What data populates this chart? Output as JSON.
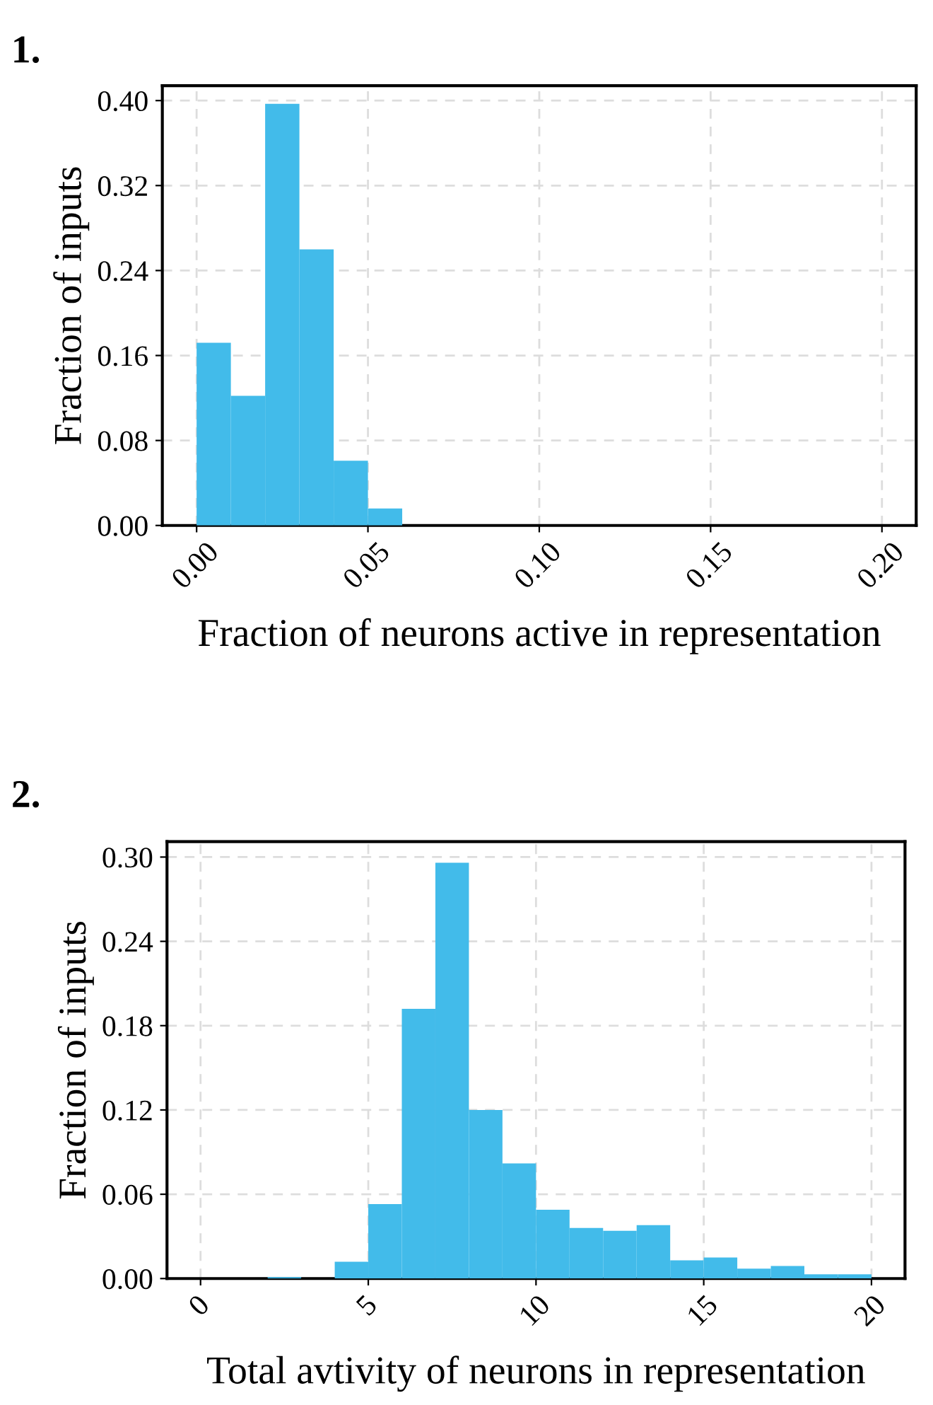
{
  "chart_data": [
    {
      "type": "histogram",
      "title": "1.",
      "xlabel": "Fraction of neurons active in representation",
      "ylabel": "Fraction of inputs",
      "color": "#42bbea",
      "bins": [
        0.0,
        0.01,
        0.02,
        0.03,
        0.04,
        0.05,
        0.06
      ],
      "values": [
        0.172,
        0.122,
        0.397,
        0.26,
        0.061,
        0.016
      ],
      "xlim": [
        -0.01,
        0.21
      ],
      "xticks": [
        {
          "value": 0,
          "label": "0.00"
        },
        0.05,
        {
          "value": 0.1,
          "label": "0.10"
        },
        0.15,
        {
          "value": 0.2,
          "label": "0.20"
        }
      ],
      "ylim": [
        0,
        0.414
      ],
      "yticks": [
        {
          "value": 0,
          "label": "0.00"
        },
        0.08,
        0.16,
        0.24,
        0.32,
        {
          "value": 0.4,
          "label": "0.40"
        }
      ],
      "grid": true
    },
    {
      "type": "histogram",
      "title": "2.",
      "xlabel": "Total avtivity of neurons in representation",
      "ylabel": "Fraction of inputs",
      "color": "#42bbea",
      "bins": [
        0,
        1,
        2,
        3,
        4,
        5,
        6,
        7,
        8,
        9,
        10,
        11,
        12,
        13,
        14,
        15,
        16,
        17,
        18,
        19,
        20
      ],
      "values": [
        0,
        0,
        0.001,
        0,
        0.012,
        0.053,
        0.192,
        0.296,
        0.12,
        0.082,
        0.049,
        0.036,
        0.034,
        0.038,
        0.013,
        0.015,
        0.007,
        0.009,
        0.003,
        0.003
      ],
      "xlim": [
        -1,
        21
      ],
      "xticks": [
        0,
        5,
        10,
        15,
        20
      ],
      "ylim": [
        0,
        0.311
      ],
      "yticks": [
        {
          "value": 0,
          "label": "0.00"
        },
        0.06,
        0.12,
        0.18,
        0.24,
        {
          "value": 0.3,
          "label": "0.30"
        }
      ],
      "grid": true
    }
  ]
}
